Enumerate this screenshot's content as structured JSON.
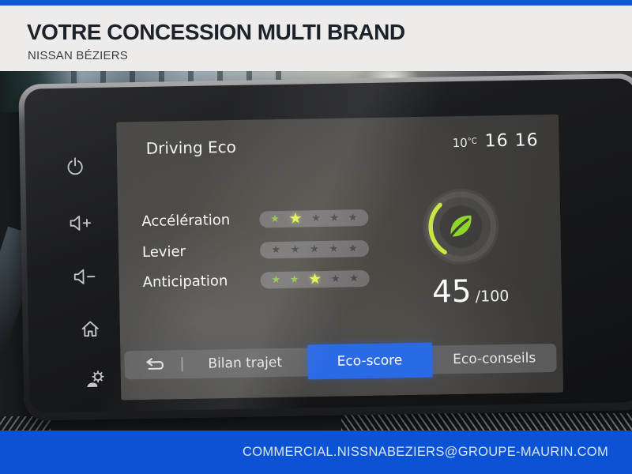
{
  "header": {
    "title": "VOTRE CONCESSION MULTI BRAND",
    "subtitle": "NISSAN BÉZIERS"
  },
  "footer": {
    "email": "COMMERCIAL.NISSNABEZIERS@GROUPE-MAURIN.COM"
  },
  "ivi": {
    "title": "Driving Eco",
    "status": {
      "temperature": "10",
      "temperature_unit": "°C",
      "time": "16 16"
    },
    "metrics": [
      {
        "label": "Accélération",
        "rating": 2,
        "max": 5,
        "stars": [
          "lit",
          "current",
          "off",
          "off",
          "off"
        ]
      },
      {
        "label": "Levier",
        "rating": 0,
        "max": 5,
        "stars": [
          "off",
          "off",
          "off",
          "off",
          "off"
        ]
      },
      {
        "label": "Anticipation",
        "rating": 3,
        "max": 5,
        "stars": [
          "lit",
          "lit",
          "current",
          "off",
          "off"
        ]
      }
    ],
    "score": {
      "value": "45",
      "suffix": "/100",
      "percent": 45
    },
    "tabs": [
      {
        "label": "Bilan trajet",
        "active": false
      },
      {
        "label": "Eco-score",
        "active": true
      },
      {
        "label": "Eco-conseils",
        "active": false
      }
    ],
    "side_buttons": [
      "power",
      "volume-up",
      "volume-down",
      "home",
      "driving-assist-settings"
    ]
  },
  "colors": {
    "top_bar_blue": "#1157d9",
    "footer_blue": "#0c52d4",
    "active_tab_blue": "#2a6ae4",
    "eco_leaf_green": "#8ed62a",
    "gauge_arc_green": "#c9e542",
    "star_lit_green": "#8fc84a",
    "star_current_yellow": "#e6f055",
    "header_bg": "#edecea"
  }
}
